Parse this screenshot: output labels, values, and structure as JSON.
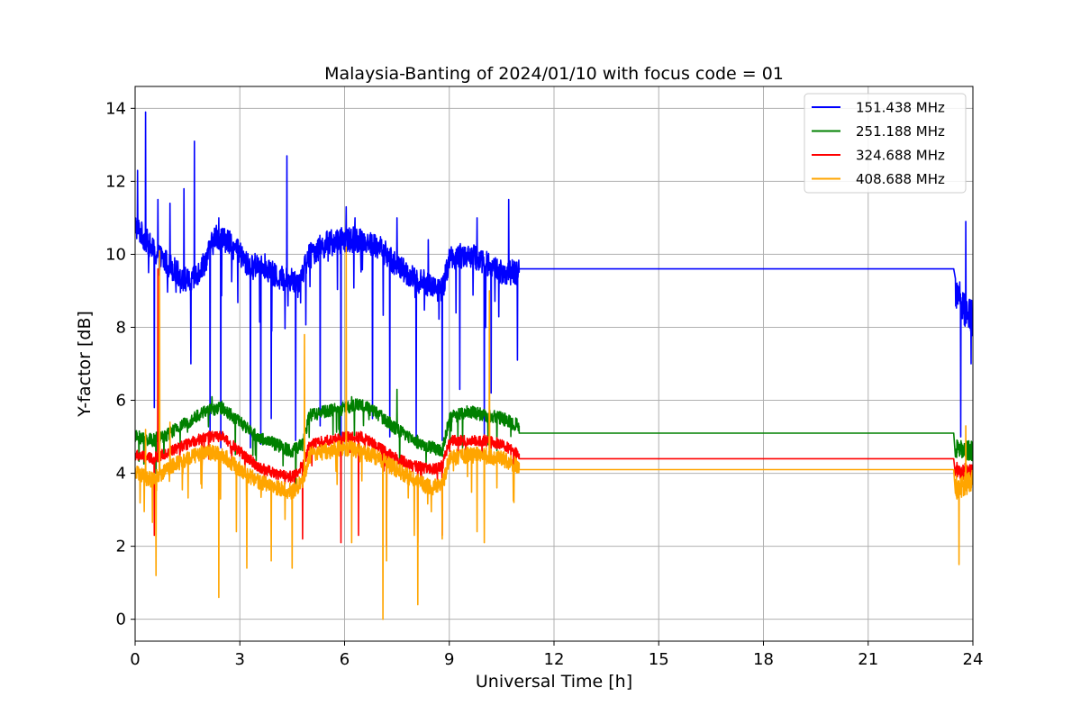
{
  "chart_data": {
    "type": "line",
    "title": "Malaysia-Banting of 2024/01/10 with focus code = 01",
    "xlabel": "Universal Time [h]",
    "ylabel": "Y-factor [dB]",
    "xlim": [
      0,
      24
    ],
    "ylim": [
      -0.6,
      14.6
    ],
    "xticks": [
      0,
      3,
      6,
      9,
      12,
      15,
      18,
      21,
      24
    ],
    "yticks": [
      0,
      2,
      4,
      6,
      8,
      10,
      12,
      14
    ],
    "grid": true,
    "legend_position": "top-right",
    "series": [
      {
        "name": "151.438 MHz",
        "color": "#0000ff",
        "base": [
          [
            0,
            10.8
          ],
          [
            0.3,
            10.4
          ],
          [
            0.6,
            10.0
          ],
          [
            1.0,
            9.7
          ],
          [
            1.3,
            9.4
          ],
          [
            1.6,
            9.2
          ],
          [
            2.0,
            9.8
          ],
          [
            2.3,
            10.5
          ],
          [
            2.6,
            10.4
          ],
          [
            3.0,
            10.0
          ],
          [
            3.3,
            9.6
          ],
          [
            3.6,
            9.8
          ],
          [
            4.0,
            9.4
          ],
          [
            4.4,
            9.3
          ],
          [
            4.7,
            9.3
          ],
          [
            5.0,
            10.0
          ],
          [
            5.5,
            10.3
          ],
          [
            6.0,
            10.4
          ],
          [
            6.5,
            10.4
          ],
          [
            7.0,
            10.2
          ],
          [
            7.5,
            9.7
          ],
          [
            8.0,
            9.3
          ],
          [
            8.4,
            9.2
          ],
          [
            8.8,
            9.0
          ],
          [
            9.0,
            9.9
          ],
          [
            9.5,
            10.0
          ],
          [
            10.0,
            9.8
          ],
          [
            10.5,
            9.5
          ],
          [
            11.0,
            9.5
          ]
        ],
        "noise": 0.35,
        "extra_points": [
          [
            11.0,
            9.6
          ],
          [
            23.45,
            9.6
          ],
          [
            23.5,
            8.9
          ],
          [
            24.0,
            8.2
          ]
        ],
        "spikes": [
          [
            0.07,
            12.3
          ],
          [
            0.3,
            13.9
          ],
          [
            0.55,
            5.8
          ],
          [
            0.65,
            11.5
          ],
          [
            1.0,
            11.4
          ],
          [
            1.4,
            11.8
          ],
          [
            1.6,
            7.0
          ],
          [
            1.7,
            13.1
          ],
          [
            2.15,
            5.0
          ],
          [
            2.4,
            11.0
          ],
          [
            2.45,
            4.7
          ],
          [
            3.3,
            4.7
          ],
          [
            3.6,
            4.8
          ],
          [
            3.9,
            5.5
          ],
          [
            4.35,
            12.7
          ],
          [
            4.6,
            4.9
          ],
          [
            5.3,
            5.3
          ],
          [
            5.9,
            5.0
          ],
          [
            6.05,
            11.3
          ],
          [
            6.3,
            11.0
          ],
          [
            6.8,
            5.5
          ],
          [
            7.3,
            5.0
          ],
          [
            7.5,
            11.0
          ],
          [
            8.05,
            4.9
          ],
          [
            8.4,
            10.4
          ],
          [
            8.8,
            4.9
          ],
          [
            9.3,
            6.3
          ],
          [
            9.8,
            11.0
          ],
          [
            10.0,
            4.8
          ],
          [
            10.2,
            6.2
          ],
          [
            10.7,
            11.5
          ],
          [
            10.95,
            7.1
          ],
          [
            23.45,
            10.7
          ],
          [
            23.65,
            5.0
          ],
          [
            23.8,
            10.9
          ],
          [
            23.95,
            7.0
          ]
        ]
      },
      {
        "name": "251.188 MHz",
        "color": "#008000",
        "base": [
          [
            0,
            5.0
          ],
          [
            0.5,
            4.9
          ],
          [
            1.0,
            5.1
          ],
          [
            1.5,
            5.4
          ],
          [
            2.0,
            5.7
          ],
          [
            2.5,
            5.8
          ],
          [
            3.0,
            5.4
          ],
          [
            3.5,
            5.0
          ],
          [
            4.0,
            4.8
          ],
          [
            4.5,
            4.6
          ],
          [
            4.8,
            4.8
          ],
          [
            5.0,
            5.6
          ],
          [
            5.5,
            5.7
          ],
          [
            6.0,
            5.8
          ],
          [
            6.5,
            5.9
          ],
          [
            7.0,
            5.6
          ],
          [
            7.5,
            5.2
          ],
          [
            8.0,
            4.9
          ],
          [
            8.5,
            4.7
          ],
          [
            8.8,
            4.6
          ],
          [
            9.0,
            5.5
          ],
          [
            9.5,
            5.7
          ],
          [
            10.0,
            5.6
          ],
          [
            10.5,
            5.5
          ],
          [
            11.0,
            5.3
          ]
        ],
        "noise": 0.18,
        "extra_points": [
          [
            11.0,
            5.1
          ],
          [
            23.45,
            5.1
          ],
          [
            23.5,
            4.7
          ],
          [
            24.0,
            4.6
          ]
        ],
        "spikes": [
          [
            0.6,
            4.0
          ],
          [
            2.2,
            6.1
          ],
          [
            6.2,
            6.1
          ],
          [
            7.5,
            6.3
          ]
        ]
      },
      {
        "name": "324.688 MHz",
        "color": "#ff0000",
        "base": [
          [
            0,
            4.5
          ],
          [
            0.5,
            4.4
          ],
          [
            1.0,
            4.6
          ],
          [
            1.5,
            4.8
          ],
          [
            2.0,
            5.0
          ],
          [
            2.5,
            5.0
          ],
          [
            3.0,
            4.6
          ],
          [
            3.5,
            4.2
          ],
          [
            4.0,
            4.0
          ],
          [
            4.5,
            3.9
          ],
          [
            4.8,
            4.2
          ],
          [
            5.0,
            4.8
          ],
          [
            5.5,
            4.9
          ],
          [
            6.0,
            5.0
          ],
          [
            6.5,
            5.0
          ],
          [
            7.0,
            4.7
          ],
          [
            7.5,
            4.4
          ],
          [
            8.0,
            4.2
          ],
          [
            8.5,
            4.1
          ],
          [
            8.8,
            4.2
          ],
          [
            9.0,
            4.9
          ],
          [
            9.5,
            4.9
          ],
          [
            10.0,
            4.9
          ],
          [
            10.5,
            4.8
          ],
          [
            11.0,
            4.5
          ]
        ],
        "noise": 0.15,
        "extra_points": [
          [
            11.0,
            4.4
          ],
          [
            23.45,
            4.4
          ],
          [
            23.5,
            4.1
          ],
          [
            24.0,
            4.0
          ]
        ],
        "spikes": [
          [
            0.55,
            2.3
          ],
          [
            0.65,
            9.6
          ],
          [
            4.8,
            2.2
          ],
          [
            5.9,
            2.1
          ],
          [
            6.4,
            2.3
          ],
          [
            7.2,
            2.0
          ],
          [
            8.1,
            2.1
          ],
          [
            8.8,
            2.3
          ]
        ]
      },
      {
        "name": "408.688 MHz",
        "color": "#ffa500",
        "base": [
          [
            0,
            4.0
          ],
          [
            0.5,
            3.8
          ],
          [
            1.0,
            4.2
          ],
          [
            1.5,
            4.4
          ],
          [
            2.0,
            4.6
          ],
          [
            2.5,
            4.5
          ],
          [
            3.0,
            4.1
          ],
          [
            3.5,
            3.8
          ],
          [
            4.0,
            3.6
          ],
          [
            4.5,
            3.5
          ],
          [
            4.8,
            3.8
          ],
          [
            5.0,
            4.5
          ],
          [
            5.5,
            4.6
          ],
          [
            6.0,
            4.7
          ],
          [
            6.5,
            4.6
          ],
          [
            7.0,
            4.4
          ],
          [
            7.5,
            4.1
          ],
          [
            8.0,
            3.8
          ],
          [
            8.5,
            3.6
          ],
          [
            8.8,
            3.7
          ],
          [
            9.0,
            4.4
          ],
          [
            9.5,
            4.5
          ],
          [
            10.0,
            4.5
          ],
          [
            10.5,
            4.4
          ],
          [
            11.0,
            4.2
          ]
        ],
        "noise": 0.22,
        "extra_points": [
          [
            11.0,
            4.1
          ],
          [
            23.45,
            4.1
          ],
          [
            23.5,
            3.6
          ],
          [
            24.0,
            3.8
          ]
        ],
        "spikes": [
          [
            0.3,
            5.2
          ],
          [
            0.6,
            1.2
          ],
          [
            0.7,
            10.1
          ],
          [
            1.0,
            5.4
          ],
          [
            2.4,
            0.6
          ],
          [
            2.9,
            2.4
          ],
          [
            3.2,
            1.4
          ],
          [
            3.9,
            1.6
          ],
          [
            4.5,
            1.4
          ],
          [
            4.85,
            7.8
          ],
          [
            6.05,
            10.2
          ],
          [
            6.2,
            2.1
          ],
          [
            7.1,
            0.0
          ],
          [
            7.2,
            1.6
          ],
          [
            8.0,
            2.3
          ],
          [
            8.1,
            0.4
          ],
          [
            8.8,
            2.2
          ],
          [
            9.8,
            2.4
          ],
          [
            10.0,
            2.1
          ],
          [
            10.15,
            9.0
          ],
          [
            10.85,
            3.2
          ],
          [
            23.6,
            1.5
          ],
          [
            23.8,
            5.3
          ]
        ]
      }
    ]
  }
}
